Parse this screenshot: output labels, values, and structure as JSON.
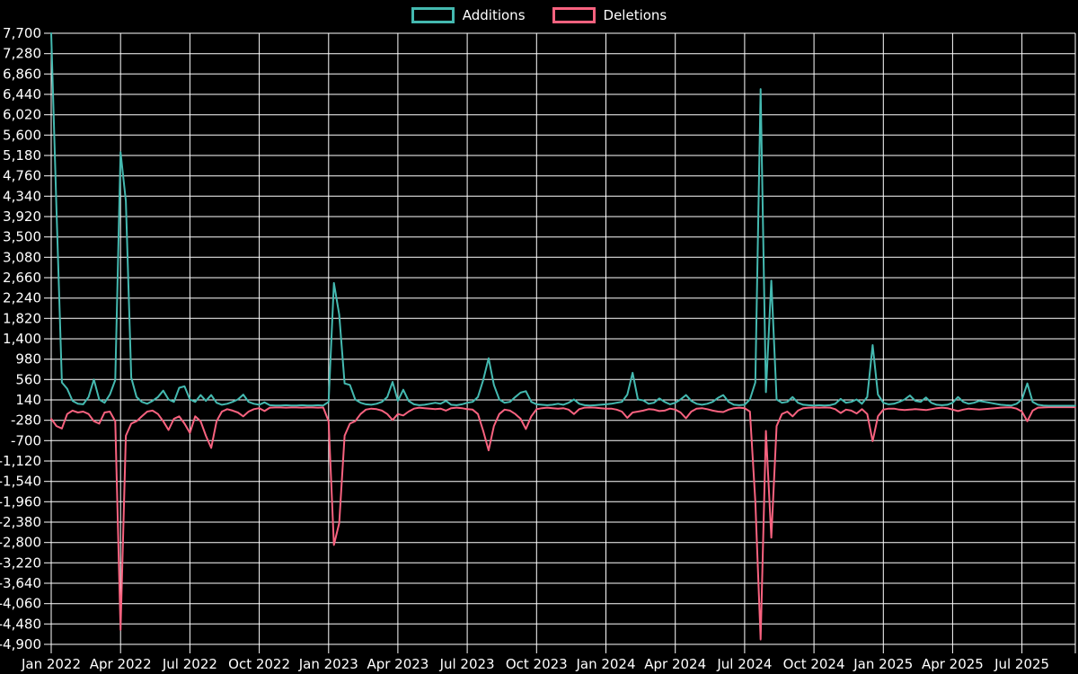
{
  "legend": {
    "additions_label": "Additions",
    "deletions_label": "Deletions"
  },
  "chart_data": {
    "type": "line",
    "title": "",
    "xlabel": "",
    "ylabel": "",
    "x_unit": "week",
    "ylim": [
      -4900,
      7700
    ],
    "grid": true,
    "legend_position": "top-center",
    "colors": {
      "background": "#000000",
      "grid": "#ffffff",
      "text": "#ffffff",
      "additions": "#44b9b0",
      "deletions": "#f8627f"
    },
    "y_ticks": [
      7700,
      7280,
      6860,
      6440,
      6020,
      5600,
      5180,
      4760,
      4340,
      3920,
      3500,
      3080,
      2660,
      2240,
      1820,
      1400,
      980,
      560,
      140,
      -280,
      -700,
      -1120,
      -1540,
      -1960,
      -2380,
      -2800,
      -3220,
      -3640,
      -4060,
      -4480,
      -4900
    ],
    "x_ticks": [
      {
        "week": 0,
        "label": "Jan 2022"
      },
      {
        "week": 13,
        "label": "Apr 2022"
      },
      {
        "week": 26,
        "label": "Jul 2022"
      },
      {
        "week": 39,
        "label": "Oct 2022"
      },
      {
        "week": 52,
        "label": "Jan 2023"
      },
      {
        "week": 65,
        "label": "Apr 2023"
      },
      {
        "week": 78,
        "label": "Jul 2023"
      },
      {
        "week": 91,
        "label": "Oct 2023"
      },
      {
        "week": 104,
        "label": "Jan 2024"
      },
      {
        "week": 117,
        "label": "Apr 2024"
      },
      {
        "week": 130,
        "label": "Jul 2024"
      },
      {
        "week": 143,
        "label": "Oct 2024"
      },
      {
        "week": 156,
        "label": "Jan 2025"
      },
      {
        "week": 169,
        "label": "Apr 2025"
      },
      {
        "week": 182,
        "label": "Jul 2025"
      }
    ],
    "series": [
      {
        "name": "Additions",
        "color": "#44b9b0",
        "values": [
          7700,
          4050,
          500,
          370,
          120,
          60,
          50,
          200,
          560,
          150,
          80,
          250,
          550,
          5250,
          4240,
          600,
          200,
          100,
          60,
          120,
          200,
          330,
          150,
          100,
          390,
          420,
          150,
          100,
          240,
          120,
          240,
          80,
          40,
          60,
          100,
          150,
          250,
          100,
          60,
          40,
          90,
          30,
          25,
          25,
          30,
          25,
          25,
          30,
          25,
          25,
          30,
          25,
          100,
          2550,
          1900,
          480,
          450,
          150,
          80,
          50,
          40,
          60,
          100,
          200,
          510,
          120,
          350,
          120,
          50,
          30,
          40,
          60,
          80,
          60,
          120,
          40,
          30,
          50,
          80,
          100,
          200,
          550,
          1000,
          450,
          150,
          80,
          100,
          200,
          290,
          320,
          100,
          50,
          40,
          30,
          40,
          60,
          40,
          80,
          150,
          60,
          30,
          25,
          30,
          40,
          50,
          60,
          80,
          100,
          250,
          700,
          150,
          130,
          60,
          80,
          170,
          100,
          50,
          80,
          150,
          240,
          120,
          60,
          40,
          60,
          100,
          180,
          240,
          100,
          40,
          30,
          40,
          150,
          500,
          6550,
          300,
          2600,
          150,
          80,
          100,
          200,
          80,
          40,
          30,
          25,
          30,
          25,
          30,
          60,
          160,
          80,
          100,
          150,
          60,
          200,
          1270,
          250,
          80,
          50,
          60,
          100,
          150,
          230,
          120,
          100,
          190,
          80,
          40,
          30,
          40,
          80,
          200,
          100,
          60,
          80,
          120,
          100,
          80,
          60,
          40,
          30,
          25,
          60,
          150,
          480,
          100,
          40,
          25,
          20,
          20,
          20,
          20,
          20,
          20
        ]
      },
      {
        "name": "Deletions",
        "color": "#f8627f",
        "values": [
          -250,
          -400,
          -450,
          -150,
          -80,
          -120,
          -100,
          -150,
          -300,
          -350,
          -120,
          -100,
          -300,
          -4600,
          -600,
          -350,
          -300,
          -200,
          -100,
          -80,
          -150,
          -300,
          -480,
          -250,
          -200,
          -350,
          -540,
          -200,
          -300,
          -600,
          -850,
          -300,
          -100,
          -50,
          -80,
          -120,
          -200,
          -100,
          -50,
          -30,
          -90,
          -20,
          -15,
          -15,
          -20,
          -15,
          -15,
          -20,
          -15,
          -15,
          -20,
          -15,
          -300,
          -2850,
          -2400,
          -600,
          -350,
          -300,
          -150,
          -60,
          -40,
          -50,
          -80,
          -150,
          -275,
          -150,
          -180,
          -100,
          -40,
          -20,
          -30,
          -40,
          -50,
          -40,
          -80,
          -30,
          -20,
          -30,
          -50,
          -60,
          -150,
          -500,
          -900,
          -400,
          -150,
          -60,
          -80,
          -150,
          -250,
          -460,
          -200,
          -50,
          -30,
          -20,
          -30,
          -40,
          -30,
          -60,
          -150,
          -50,
          -20,
          -15,
          -20,
          -30,
          -40,
          -40,
          -60,
          -100,
          -230,
          -120,
          -100,
          -80,
          -50,
          -60,
          -90,
          -80,
          -40,
          -60,
          -120,
          -240,
          -100,
          -40,
          -30,
          -50,
          -80,
          -100,
          -110,
          -60,
          -30,
          -20,
          -30,
          -100,
          -1950,
          -4800,
          -500,
          -2700,
          -400,
          -150,
          -100,
          -200,
          -80,
          -30,
          -20,
          -15,
          -20,
          -15,
          -20,
          -50,
          -130,
          -60,
          -80,
          -140,
          -50,
          -150,
          -710,
          -200,
          -60,
          -40,
          -40,
          -60,
          -70,
          -60,
          -50,
          -60,
          -70,
          -50,
          -30,
          -20,
          -30,
          -60,
          -90,
          -60,
          -40,
          -50,
          -60,
          -50,
          -40,
          -30,
          -20,
          -15,
          -15,
          -40,
          -100,
          -300,
          -80,
          -20,
          -15,
          -10,
          -10,
          -10,
          -10,
          -10,
          -10
        ]
      }
    ]
  }
}
